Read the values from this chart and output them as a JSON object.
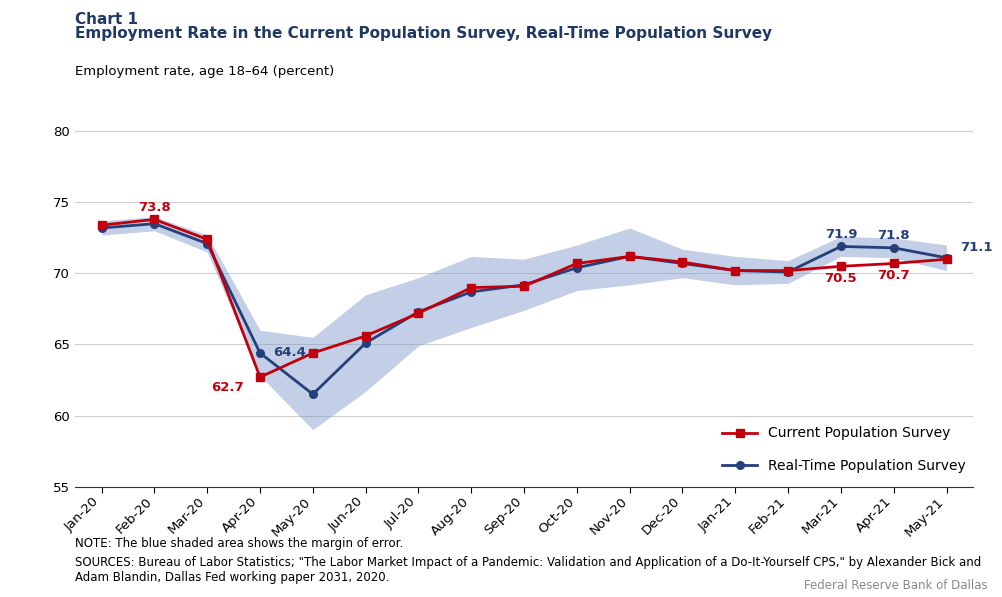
{
  "title_line1": "Chart 1",
  "title_line2": "Employment Rate in the Current Population Survey, Real-Time Population Survey",
  "ylabel": "Employment rate, age 18–64 (percent)",
  "ylim": [
    55,
    80
  ],
  "yticks": [
    55,
    60,
    65,
    70,
    75,
    80
  ],
  "x_labels": [
    "Jan-20",
    "Feb-20",
    "Mar-20",
    "Apr-20",
    "May-20",
    "Jun-20",
    "Jul-20",
    "Aug-20",
    "Sep-20",
    "Oct-20",
    "Nov-20",
    "Dec-20",
    "Jan-21",
    "Feb-21",
    "Mar-21",
    "Apr-21",
    "May-21"
  ],
  "cps_values": [
    73.4,
    73.8,
    72.4,
    62.7,
    64.4,
    65.6,
    67.2,
    69.0,
    69.1,
    70.7,
    71.2,
    70.8,
    70.2,
    70.2,
    70.5,
    70.7,
    71.0
  ],
  "rtps_values": [
    73.2,
    73.5,
    72.1,
    64.4,
    61.5,
    65.1,
    67.3,
    68.7,
    69.2,
    70.4,
    71.2,
    70.7,
    70.2,
    70.1,
    71.9,
    71.8,
    71.1
  ],
  "rtps_upper": [
    73.7,
    74.0,
    72.7,
    66.0,
    65.5,
    68.5,
    69.7,
    71.2,
    71.0,
    72.0,
    73.2,
    71.7,
    71.2,
    70.9,
    72.6,
    72.5,
    72.0
  ],
  "rtps_lower": [
    72.7,
    73.0,
    71.5,
    62.8,
    59.0,
    61.7,
    64.9,
    66.2,
    67.4,
    68.8,
    69.2,
    69.7,
    69.2,
    69.3,
    71.2,
    71.1,
    70.2
  ],
  "cps_color": "#C0000C",
  "rtps_color": "#243F7A",
  "band_color": "#7B96C8",
  "band_alpha": 0.45,
  "title_color": "#1F3864",
  "note_text": "NOTE: The blue shaded area shows the margin of error.",
  "source_text": "SOURCES: Bureau of Labor Statistics; \"The Labor Market Impact of a Pandemic: Validation and Application of a Do-It-Yourself CPS,\" by Alexander Bick and\nAdam Blandin, Dallas Fed working paper 2031, 2020.",
  "credit_text": "Federal Reserve Bank of Dallas",
  "cps_annotations": [
    {
      "idx": 1,
      "label": "73.8",
      "color": "#C0000C",
      "xoff": 0.0,
      "yoff": 0.4,
      "ha": "center",
      "va": "bottom",
      "fontsize": 9.5
    },
    {
      "idx": 3,
      "label": "62.7",
      "color": "#C0000C",
      "xoff": -0.3,
      "yoff": -0.3,
      "ha": "right",
      "va": "top",
      "fontsize": 9.5
    },
    {
      "idx": 14,
      "label": "70.5",
      "color": "#C0000C",
      "xoff": 0.0,
      "yoff": -0.4,
      "ha": "center",
      "va": "top",
      "fontsize": 9.5
    },
    {
      "idx": 15,
      "label": "70.7",
      "color": "#C0000C",
      "xoff": 0.0,
      "yoff": -0.4,
      "ha": "center",
      "va": "top",
      "fontsize": 9.5
    }
  ],
  "rtps_annotations": [
    {
      "idx": 3,
      "label": "64.4",
      "color": "#243F7A",
      "xoff": 0.25,
      "yoff": 0.0,
      "ha": "left",
      "va": "center",
      "fontsize": 9.5
    },
    {
      "idx": 14,
      "label": "71.9",
      "color": "#243F7A",
      "xoff": 0.0,
      "yoff": 0.4,
      "ha": "center",
      "va": "bottom",
      "fontsize": 9.5
    },
    {
      "idx": 15,
      "label": "71.8",
      "color": "#243F7A",
      "xoff": 0.0,
      "yoff": 0.4,
      "ha": "center",
      "va": "bottom",
      "fontsize": 9.5
    },
    {
      "idx": 16,
      "label": "71.1",
      "color": "#243F7A",
      "xoff": 0.25,
      "yoff": 0.3,
      "ha": "left",
      "va": "bottom",
      "fontsize": 9.5
    }
  ]
}
